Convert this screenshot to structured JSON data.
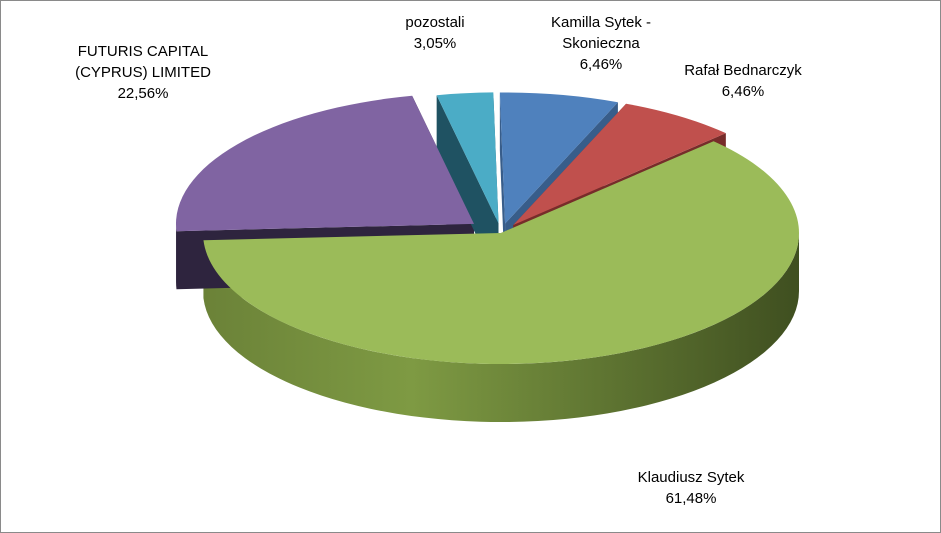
{
  "chart_data": {
    "type": "pie",
    "title": "",
    "slices": [
      {
        "label": "Kamilla Sytek - Skonieczna",
        "label_lines": [
          "Kamilla Sytek -",
          "Skonieczna"
        ],
        "value_text": "6,46%",
        "value": 6.46,
        "color": "#4f81bd"
      },
      {
        "label": "Rafał Bednarczyk",
        "label_lines": [
          "Rafał Bednarczyk"
        ],
        "value_text": "6,46%",
        "value": 6.46,
        "color": "#c0504d"
      },
      {
        "label": "Klaudiusz Sytek",
        "label_lines": [
          "Klaudiusz Sytek"
        ],
        "value_text": "61,48%",
        "value": 61.48,
        "color": "#9bbb59"
      },
      {
        "label": "FUTURIS CAPITAL (CYPRUS) LIMITED",
        "label_lines": [
          "FUTURIS CAPITAL",
          "(CYPRUS) LIMITED"
        ],
        "value_text": "22,56%",
        "value": 22.56,
        "color": "#8064a2"
      },
      {
        "label": "pozostali",
        "label_lines": [
          "pozostali"
        ],
        "value_text": "3,05%",
        "value": 3.05,
        "color": "#4bacc6"
      }
    ]
  }
}
